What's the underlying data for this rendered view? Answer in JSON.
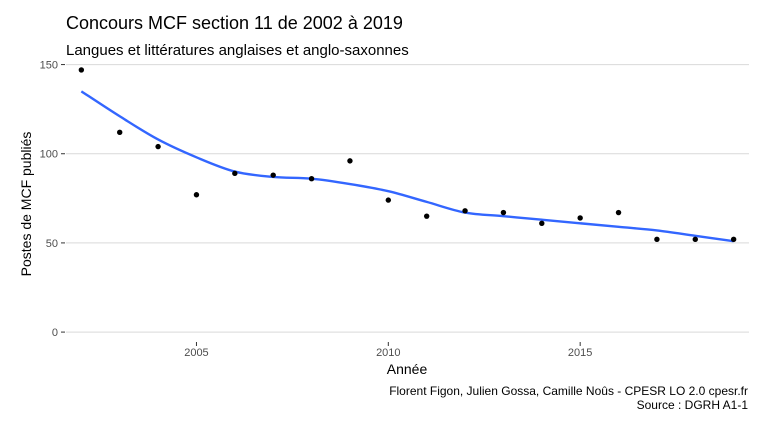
{
  "chart_data": {
    "type": "scatter",
    "title": "Concours MCF section 11 de 2002 à 2019",
    "subtitle": "Langues et littératures anglaises et anglo-saxonnes",
    "xlabel": "Année",
    "ylabel": "Postes de MCF publiés",
    "caption_line1": "Florent Figon, Julien Gossa, Camille Noûs - CPESR LO 2.0 cpesr.fr",
    "caption_line2": "Source : DGRH A1-1",
    "xlim": [
      2001.6,
      2019.4
    ],
    "ylim": [
      -5,
      152
    ],
    "x_ticks": [
      2005,
      2010,
      2015
    ],
    "x_tick_labels": [
      "2005",
      "2010",
      "2015"
    ],
    "y_ticks": [
      0,
      50,
      100,
      150
    ],
    "y_tick_labels": [
      "0",
      "50",
      "100",
      "150"
    ],
    "grid": "horizontal",
    "colors": {
      "points": "#000000",
      "trend": "#3366ff",
      "grid": "#d9d9d9"
    },
    "points": {
      "x": [
        2002,
        2003,
        2004,
        2005,
        2006,
        2007,
        2008,
        2009,
        2010,
        2011,
        2012,
        2013,
        2014,
        2015,
        2016,
        2017,
        2018,
        2019
      ],
      "y": [
        147,
        112,
        104,
        77,
        89,
        88,
        86,
        96,
        74,
        65,
        68,
        67,
        61,
        64,
        67,
        52,
        52,
        52
      ]
    },
    "trend": {
      "x": [
        2002,
        2003,
        2004,
        2005,
        2006,
        2007,
        2008,
        2009,
        2010,
        2011,
        2012,
        2013,
        2014,
        2015,
        2016,
        2017,
        2018,
        2019
      ],
      "y": [
        135,
        121,
        108,
        98,
        90,
        87,
        86,
        83,
        79,
        73,
        67,
        65,
        63,
        61,
        59,
        57,
        54,
        51
      ]
    }
  }
}
